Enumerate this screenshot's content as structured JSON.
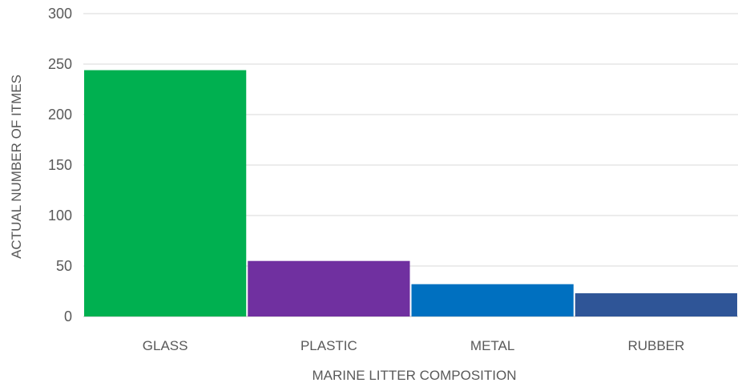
{
  "chart_data": {
    "type": "bar",
    "title": "",
    "xlabel": "MARINE LITTER COMPOSITION",
    "ylabel": "ACTUAL NUMBER OF ITMES",
    "categories": [
      "GLASS",
      "PLASTIC",
      "METAL",
      "RUBBER"
    ],
    "values": [
      244,
      55,
      32,
      23
    ],
    "colors": [
      "#00b050",
      "#7030a0",
      "#0070c0",
      "#2f5597"
    ],
    "ylim": [
      0,
      300
    ],
    "yticks": [
      0,
      50,
      100,
      150,
      200,
      250,
      300
    ],
    "grid": true,
    "legend": "none"
  }
}
